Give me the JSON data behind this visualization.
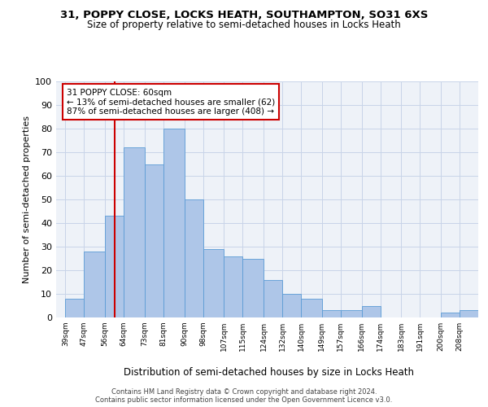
{
  "title1": "31, POPPY CLOSE, LOCKS HEATH, SOUTHAMPTON, SO31 6XS",
  "title2": "Size of property relative to semi-detached houses in Locks Heath",
  "xlabel": "Distribution of semi-detached houses by size in Locks Heath",
  "ylabel": "Number of semi-detached properties",
  "footer1": "Contains HM Land Registry data © Crown copyright and database right 2024.",
  "footer2": "Contains public sector information licensed under the Open Government Licence v3.0.",
  "annotation_title": "31 POPPY CLOSE: 60sqm",
  "annotation_line1": "← 13% of semi-detached houses are smaller (62)",
  "annotation_line2": "87% of semi-detached houses are larger (408) →",
  "property_size": 60,
  "bar_left_edges": [
    39,
    47,
    56,
    64,
    73,
    81,
    90,
    98,
    107,
    115,
    124,
    132,
    140,
    149,
    157,
    166,
    174,
    183,
    191,
    200,
    208
  ],
  "bar_widths": [
    8,
    9,
    8,
    9,
    8,
    9,
    8,
    9,
    8,
    9,
    8,
    8,
    9,
    8,
    9,
    8,
    9,
    8,
    9,
    8,
    9
  ],
  "bar_heights": [
    8,
    28,
    43,
    72,
    65,
    80,
    50,
    29,
    26,
    25,
    16,
    10,
    8,
    3,
    3,
    5,
    0,
    0,
    0,
    2,
    3
  ],
  "bar_color": "#aec6e8",
  "bar_edge_color": "#5b9bd5",
  "vline_color": "#cc0000",
  "vline_x": 60,
  "annotation_box_color": "#ffffff",
  "annotation_box_edge": "#cc0000",
  "grid_color": "#c8d4e8",
  "bg_color": "#eef2f8",
  "ylim": [
    0,
    100
  ],
  "xlim": [
    35,
    216
  ],
  "tick_labels": [
    "39sqm",
    "47sqm",
    "56sqm",
    "64sqm",
    "73sqm",
    "81sqm",
    "90sqm",
    "98sqm",
    "107sqm",
    "115sqm",
    "124sqm",
    "132sqm",
    "140sqm",
    "149sqm",
    "157sqm",
    "166sqm",
    "174sqm",
    "183sqm",
    "191sqm",
    "200sqm",
    "208sqm"
  ],
  "tick_positions": [
    39,
    47,
    56,
    64,
    73,
    81,
    90,
    98,
    107,
    115,
    124,
    132,
    140,
    149,
    157,
    166,
    174,
    183,
    191,
    200,
    208
  ]
}
